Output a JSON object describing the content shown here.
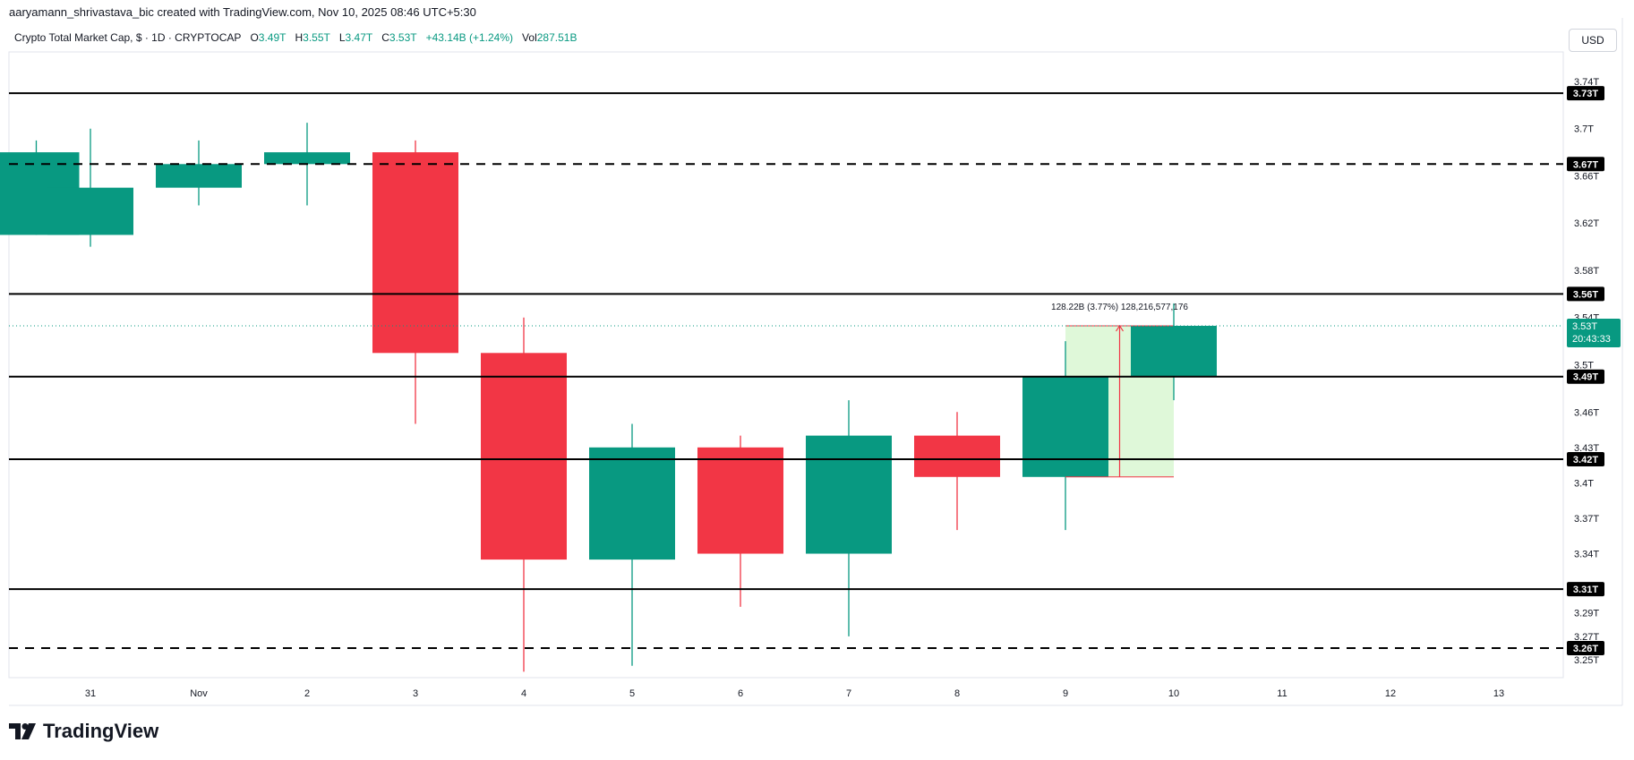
{
  "header": {
    "caption": "aaryamann_shrivastava_bic created with TradingView.com, Nov 10, 2025 08:46 UTC+5:30",
    "symbol": "Crypto Total Market Cap, $ · 1D · CRYPTOCAP",
    "o_label": "O",
    "o_value": "3.49T",
    "h_label": "H",
    "h_value": "3.55T",
    "l_label": "L",
    "l_value": "3.47T",
    "c_label": "C",
    "c_value": "3.53T",
    "change": "+43.14B (+1.24%)",
    "vol_label": "Vol",
    "vol_value": "287.51B"
  },
  "currency_button": "USD",
  "brand": "TradingView",
  "colors": {
    "up": "#089981",
    "down": "#f23645",
    "measure_fill": "#dff8d9",
    "measure_line": "#f23645",
    "last_price_bg": "#089981"
  },
  "chart_data": {
    "type": "candlestick",
    "ylim": [
      3.235,
      3.765
    ],
    "candles": [
      {
        "x": 29.5,
        "o": 3.61,
        "h": 3.69,
        "l": 3.61,
        "c": 3.68
      },
      {
        "x": 30,
        "o": 3.61,
        "h": 3.7,
        "l": 3.6,
        "c": 3.65
      },
      {
        "x": 31,
        "o": 3.65,
        "h": 3.69,
        "l": 3.635,
        "c": 3.67
      },
      {
        "x": 32,
        "o": 3.67,
        "h": 3.705,
        "l": 3.635,
        "c": 3.68
      },
      {
        "x": 33,
        "o": 3.68,
        "h": 3.69,
        "l": 3.45,
        "c": 3.51
      },
      {
        "x": 34,
        "o": 3.51,
        "h": 3.54,
        "l": 3.24,
        "c": 3.335
      },
      {
        "x": 35,
        "o": 3.335,
        "h": 3.45,
        "l": 3.245,
        "c": 3.43
      },
      {
        "x": 36,
        "o": 3.43,
        "h": 3.44,
        "l": 3.295,
        "c": 3.34
      },
      {
        "x": 37,
        "o": 3.34,
        "h": 3.47,
        "l": 3.27,
        "c": 3.44
      },
      {
        "x": 38,
        "o": 3.44,
        "h": 3.46,
        "l": 3.36,
        "c": 3.405
      },
      {
        "x": 39,
        "o": 3.405,
        "h": 3.52,
        "l": 3.36,
        "c": 3.49
      },
      {
        "x": 40,
        "o": 3.49,
        "h": 3.552,
        "l": 3.47,
        "c": 3.533
      }
    ],
    "x_ticks": [
      {
        "x": 30,
        "label": "31"
      },
      {
        "x": 31,
        "label": "Nov"
      },
      {
        "x": 32,
        "label": "2"
      },
      {
        "x": 33,
        "label": "3"
      },
      {
        "x": 34,
        "label": "4"
      },
      {
        "x": 35,
        "label": "5"
      },
      {
        "x": 36,
        "label": "6"
      },
      {
        "x": 37,
        "label": "7"
      },
      {
        "x": 38,
        "label": "8"
      },
      {
        "x": 39,
        "label": "9"
      },
      {
        "x": 40,
        "label": "10"
      },
      {
        "x": 41,
        "label": "11"
      },
      {
        "x": 42,
        "label": "12"
      },
      {
        "x": 43,
        "label": "13"
      }
    ],
    "y_ticks": [
      {
        "v": 3.25,
        "label": "3.25T"
      },
      {
        "v": 3.27,
        "label": "3.27T"
      },
      {
        "v": 3.29,
        "label": "3.29T"
      },
      {
        "v": 3.34,
        "label": "3.34T"
      },
      {
        "v": 3.37,
        "label": "3.37T"
      },
      {
        "v": 3.4,
        "label": "3.4T"
      },
      {
        "v": 3.43,
        "label": "3.43T"
      },
      {
        "v": 3.46,
        "label": "3.46T"
      },
      {
        "v": 3.5,
        "label": "3.5T"
      },
      {
        "v": 3.54,
        "label": "3.54T"
      },
      {
        "v": 3.58,
        "label": "3.58T"
      },
      {
        "v": 3.62,
        "label": "3.62T"
      },
      {
        "v": 3.66,
        "label": "3.66T"
      },
      {
        "v": 3.7,
        "label": "3.7T"
      },
      {
        "v": 3.74,
        "label": "3.74T"
      }
    ],
    "levels": [
      {
        "v": 3.73,
        "label": "3.73T",
        "style": "solid"
      },
      {
        "v": 3.67,
        "label": "3.67T",
        "style": "dashed"
      },
      {
        "v": 3.56,
        "label": "3.56T",
        "style": "solid"
      },
      {
        "v": 3.49,
        "label": "3.49T",
        "style": "solid"
      },
      {
        "v": 3.42,
        "label": "3.42T",
        "style": "solid"
      },
      {
        "v": 3.31,
        "label": "3.31T",
        "style": "solid"
      },
      {
        "v": 3.26,
        "label": "3.26T",
        "style": "dashed"
      }
    ],
    "last_price": {
      "v": 3.533,
      "label": "3.53T",
      "countdown": "20:43:33"
    },
    "measure": {
      "x0": 39,
      "x1": 40,
      "v0": 3.405,
      "v1": 3.533,
      "label": "128.22B (3.77%) 128,216,577,176"
    }
  }
}
